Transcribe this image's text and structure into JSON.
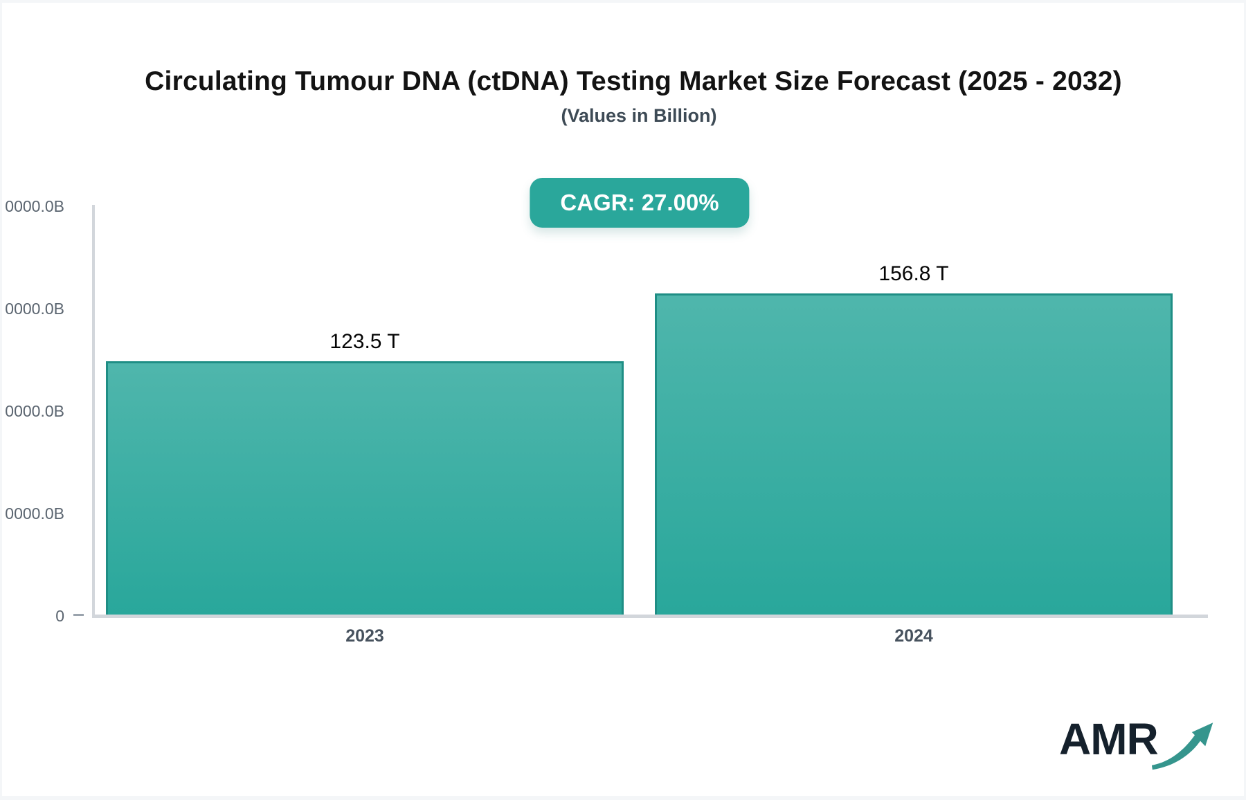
{
  "header": {
    "title": "Circulating Tumour DNA (ctDNA) Testing Market Size Forecast (2025 - 2032)",
    "subtitle": "(Values in Billion)"
  },
  "badge": {
    "label": "CAGR: 27.00%",
    "background": "#2aa79b",
    "text_color": "#ffffff"
  },
  "chart_data": {
    "type": "bar",
    "title": "Circulating Tumour DNA (ctDNA) Testing Market Size Forecast (2025 - 2032)",
    "subtitle": "(Values in Billion)",
    "categories": [
      "2023",
      "2024"
    ],
    "values": [
      123.5,
      156.8
    ],
    "value_labels": [
      "123.5 T",
      "156.8 T"
    ],
    "cagr": "27.00%",
    "xlabel": "",
    "ylabel": "",
    "ylim": [
      0,
      200
    ],
    "y_axis_tick_labels_top_to_bottom": [
      "0000.0B",
      "0000.0B",
      "0000.0B",
      "0000.0B",
      "0"
    ],
    "grid": "off",
    "legend": "none",
    "colors": {
      "bar_fill_top": "#4fb6ac",
      "bar_fill_bottom": "#29a79b",
      "bar_border": "#1f8e85",
      "axis_line": "#d2d6db",
      "badge_bg": "#2aa79b"
    }
  },
  "logo": {
    "text": "AMR",
    "arrow_icon": "growth-arrow-icon",
    "text_color": "#15212c",
    "arrow_color": "#35958d"
  }
}
